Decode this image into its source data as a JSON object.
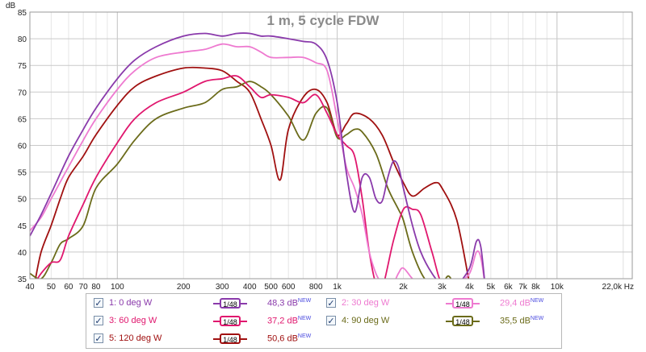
{
  "chart_data": {
    "type": "line",
    "title": "1 m, 5 cycle FDW",
    "ylabel": "dB",
    "xlabel": "Hz",
    "x_scale": "log",
    "xlim": [
      40,
      22000
    ],
    "ylim": [
      35,
      85
    ],
    "grid": true,
    "legend_position": "bottom",
    "y_ticks": [
      35,
      40,
      45,
      50,
      55,
      60,
      65,
      70,
      75,
      80,
      85
    ],
    "x_ticks": [
      40,
      50,
      60,
      70,
      80,
      100,
      200,
      300,
      400,
      500,
      600,
      800,
      1000,
      2000,
      3000,
      4000,
      5000,
      6000,
      7000,
      8000,
      10000,
      22000
    ],
    "x_tick_labels": [
      "40",
      "50",
      "60",
      "70",
      "80",
      "100",
      "200",
      "300",
      "400",
      "500",
      "600",
      "800",
      "1k",
      "2k",
      "3k",
      "4k",
      "5k",
      "6k",
      "7k",
      "8k",
      "10k",
      "22,0k Hz"
    ],
    "series": [
      {
        "name": "1: 0 deg W",
        "color": "#8a3aab",
        "smoothing": "1/48",
        "level": "48,3 dB",
        "x": [
          40,
          45,
          50,
          60,
          70,
          80,
          100,
          120,
          150,
          200,
          250,
          300,
          350,
          400,
          450,
          500,
          600,
          700,
          800,
          900,
          1000,
          1100,
          1200,
          1300,
          1400,
          1500,
          1600,
          1700,
          1800,
          1900,
          2000,
          2200,
          2400,
          2700,
          3000,
          3500,
          4000,
          4300,
          4500,
          4700
        ],
        "y": [
          43,
          47,
          51,
          58,
          63,
          67,
          72.5,
          76,
          78.5,
          80.5,
          81,
          80.5,
          81,
          81,
          80.5,
          80.5,
          80,
          79.5,
          79,
          76,
          68,
          55,
          47.5,
          54,
          54,
          50,
          49.5,
          54,
          57,
          56,
          52,
          45,
          40,
          36,
          34,
          34,
          37,
          42,
          41,
          34
        ]
      },
      {
        "name": "2: 30 deg W",
        "color": "#ee7ad0",
        "smoothing": "1/48",
        "level": "29,4 dB",
        "x": [
          40,
          45,
          50,
          60,
          70,
          80,
          100,
          120,
          150,
          200,
          250,
          300,
          350,
          400,
          450,
          500,
          600,
          700,
          800,
          900,
          1000,
          1100,
          1200,
          1300,
          1400,
          1500,
          1600,
          1700,
          1800,
          1900,
          2000,
          2200,
          2500,
          3000,
          3500,
          4000,
          4300,
          4500,
          4700
        ],
        "y": [
          44,
          46.5,
          50,
          56,
          61,
          65,
          70.5,
          74,
          76.5,
          77.5,
          78,
          79,
          78.5,
          78.5,
          77.5,
          76.5,
          76.5,
          76.5,
          75.5,
          74,
          65,
          56,
          52,
          47,
          40,
          36,
          34,
          33,
          34,
          36,
          37,
          35,
          33,
          33,
          34,
          36,
          40,
          39,
          34
        ]
      },
      {
        "name": "3: 60 deg W",
        "color": "#e0176e",
        "smoothing": "1/48",
        "level": "37,2 dB",
        "x": [
          42,
          45,
          50,
          55,
          60,
          70,
          80,
          100,
          120,
          150,
          200,
          250,
          300,
          350,
          400,
          450,
          500,
          600,
          700,
          800,
          900,
          1000,
          1100,
          1200,
          1300,
          1400,
          1500,
          1600,
          1800,
          2000,
          2200,
          2400,
          2700,
          3000,
          3500
        ],
        "y": [
          34,
          36,
          38,
          38.5,
          43,
          49,
          54,
          60.5,
          65,
          68,
          70,
          72,
          72.5,
          73,
          71,
          69,
          69.5,
          69,
          68,
          69.5,
          66,
          62,
          60,
          58,
          50,
          40,
          34,
          33,
          42,
          48,
          48,
          47,
          40,
          34,
          33
        ]
      },
      {
        "name": "4: 90 deg W",
        "color": "#6b6b1a",
        "smoothing": "1/48",
        "level": "35,5 dB",
        "x": [
          40,
          45,
          50,
          55,
          60,
          70,
          80,
          100,
          120,
          150,
          200,
          250,
          300,
          350,
          400,
          450,
          500,
          600,
          700,
          800,
          900,
          1000,
          1100,
          1200,
          1300,
          1500,
          1700,
          1900,
          2000,
          2200,
          2500,
          2800,
          3000,
          3200,
          3400
        ],
        "y": [
          36,
          35,
          38,
          41.5,
          42.5,
          45,
          52,
          56.5,
          61,
          65,
          67,
          68,
          70.5,
          71,
          72,
          71,
          69.5,
          65.5,
          61,
          66,
          67,
          61.5,
          62,
          63,
          62.5,
          58.5,
          52,
          48,
          46,
          40,
          35,
          34,
          34,
          35.5,
          34
        ]
      },
      {
        "name": "5: 120 deg W",
        "color": "#a01010",
        "smoothing": "1/48",
        "level": "50,6 dB",
        "x": [
          42,
          45,
          50,
          55,
          60,
          70,
          80,
          100,
          120,
          150,
          200,
          250,
          300,
          350,
          400,
          450,
          500,
          550,
          600,
          700,
          800,
          900,
          1000,
          1100,
          1200,
          1400,
          1600,
          1800,
          2000,
          2200,
          2500,
          2800,
          3000,
          3500,
          4000
        ],
        "y": [
          34,
          40,
          45,
          50,
          54,
          58,
          62,
          67.5,
          71,
          73,
          74.5,
          74.5,
          74,
          72,
          70,
          65,
          60,
          53.5,
          63,
          69,
          70.5,
          68,
          62,
          64,
          66,
          65,
          62,
          57,
          53,
          50.5,
          52,
          53,
          52,
          46,
          34
        ]
      }
    ]
  },
  "legend": {
    "items": [
      {
        "label": "1: 0 deg W",
        "smoothing": "1/48",
        "value": "48,3 dB",
        "new_tag": "NEW",
        "color": "#8a3aab"
      },
      {
        "label": "2: 30 deg W",
        "smoothing": "1/48",
        "value": "29,4 dB",
        "new_tag": "NEW",
        "color": "#ee7ad0"
      },
      {
        "label": "3: 60 deg W",
        "smoothing": "1/48",
        "value": "37,2 dB",
        "new_tag": "NEW",
        "color": "#e0176e"
      },
      {
        "label": "4: 90 deg W",
        "smoothing": "1/48",
        "value": "35,5 dB",
        "new_tag": "NEW",
        "color": "#6b6b1a"
      },
      {
        "label": "5: 120 deg W",
        "smoothing": "1/48",
        "value": "50,6 dB",
        "new_tag": "NEW",
        "color": "#a01010"
      }
    ]
  }
}
